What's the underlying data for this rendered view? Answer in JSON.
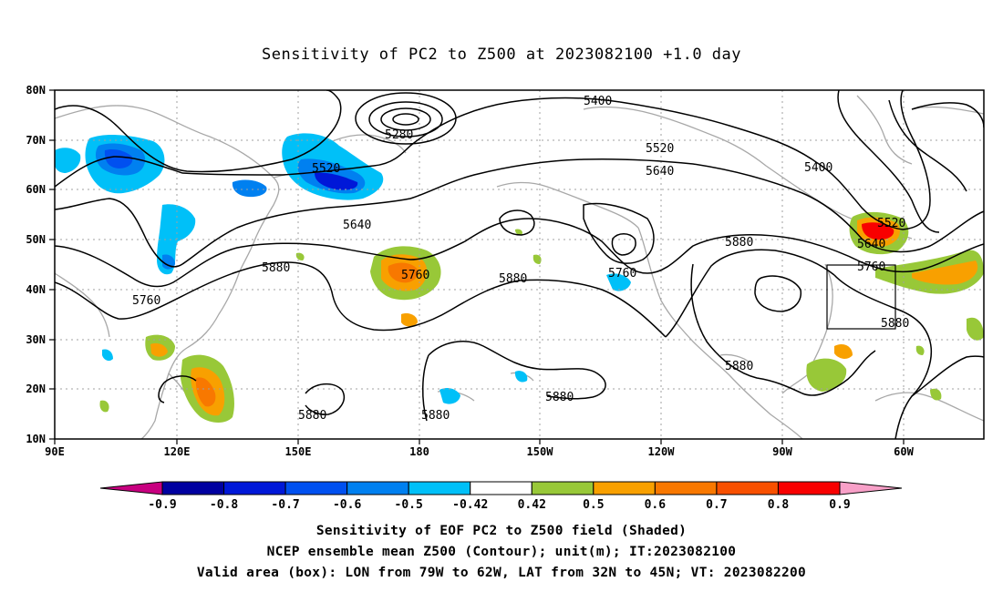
{
  "title": "Sensitivity of PC2 to Z500 at 2023082100 +1.0 day",
  "lat_labels": [
    "80N",
    "70N",
    "60N",
    "50N",
    "40N",
    "30N",
    "20N",
    "10N"
  ],
  "lon_labels": [
    "90E",
    "120E",
    "150E",
    "180",
    "150W",
    "120W",
    "90W",
    "60W"
  ],
  "contour_labels": {
    "c5400a": "5400",
    "c5400b": "5400",
    "c5280": "5280",
    "c5520a": "5520",
    "c5520b": "5520",
    "c5520c": "5520",
    "c5640a": "5640",
    "c5640b": "5640",
    "c5640c": "5640",
    "c5880a": "5880",
    "c5880b": "5880",
    "c5880c": "5880",
    "c5880d": "5880",
    "c5880e": "5880",
    "c5880f": "5880",
    "c5880g": "5880",
    "c5760a": "5760",
    "c5760b": "5760",
    "c5760c": "5760",
    "c5760d": "5760"
  },
  "colorbar": {
    "labels": [
      "-0.9",
      "-0.8",
      "-0.7",
      "-0.6",
      "-0.5",
      "-0.42",
      "0.42",
      "0.5",
      "0.6",
      "0.7",
      "0.8",
      "0.9"
    ],
    "colors": [
      "#0000a0",
      "#0018d8",
      "#0050f0",
      "#0080f0",
      "#00c0f8",
      "#ffffff",
      "#98c838",
      "#f8a000",
      "#f87800",
      "#f85000",
      "#f80000"
    ],
    "low_end_color": "#c80080",
    "high_end_color": "#f8a0c8"
  },
  "valid_box": {
    "lon_min": -79,
    "lon_max": -62,
    "lat_min": 32,
    "lat_max": 45
  },
  "captions": [
    "Sensitivity of EOF PC2 to Z500 field (Shaded)",
    "NCEP ensemble mean Z500 (Contour); unit(m); IT:2023082100",
    "Valid area (box): LON from 79W to 62W, LAT from 32N to 45N; VT: 2023082200"
  ]
}
